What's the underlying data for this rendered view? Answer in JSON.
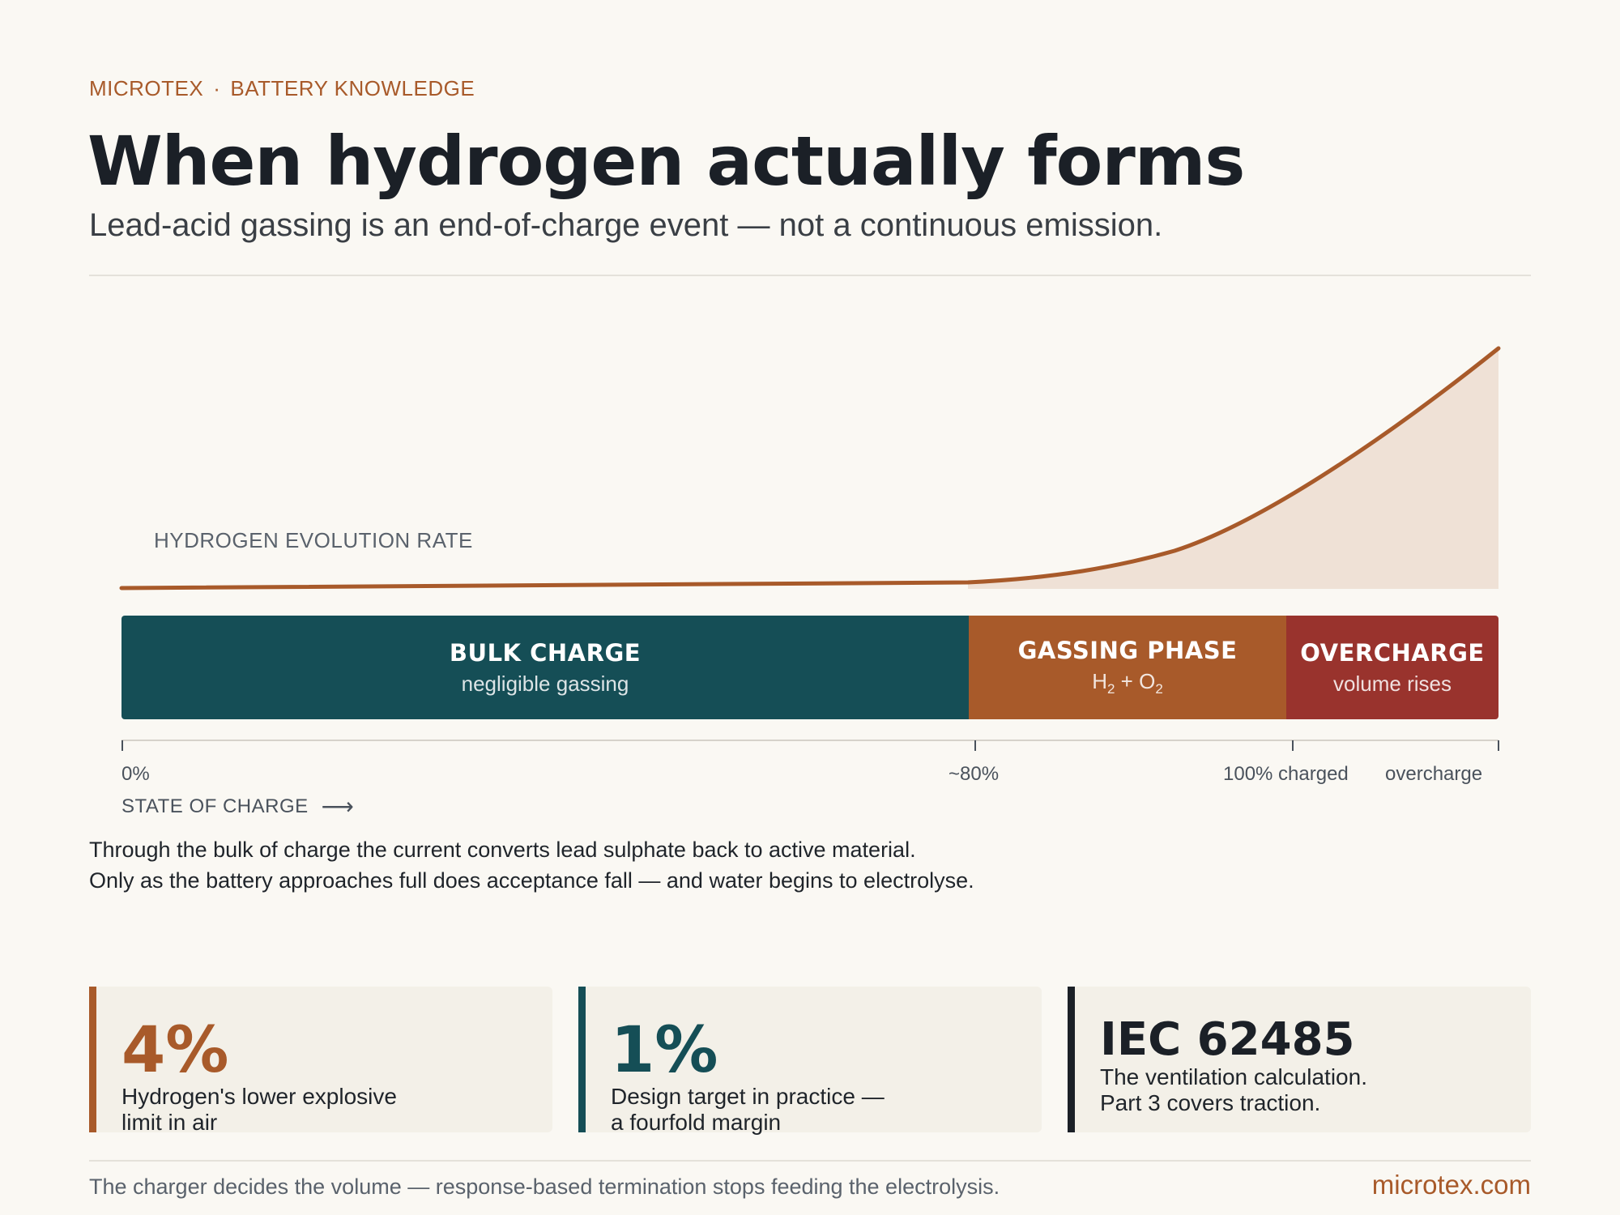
{
  "header": {
    "brand": "MICROTEX",
    "separator": "·",
    "section": "BATTERY KNOWLEDGE",
    "title": "When hydrogen actually forms",
    "subtitle": "Lead-acid gassing is an end-of-charge event — not a continuous emission."
  },
  "chart": {
    "label": "HYDROGEN EVOLUTION RATE",
    "curve_color": "#a85a2a",
    "fill_color": "#efe1d6"
  },
  "phases": [
    {
      "name": "BULK CHARGE",
      "sub": "negligible gassing",
      "color": "#154e56"
    },
    {
      "name": "GASSING PHASE",
      "sub_parts": [
        "H",
        "2",
        " + O",
        "2"
      ],
      "color": "#a85a2a"
    },
    {
      "name": "OVERCHARGE",
      "sub": "volume rises",
      "color": "#99332d"
    }
  ],
  "axis": {
    "ticks": [
      "0%",
      "~80%",
      "100% charged",
      "overcharge"
    ],
    "label": "STATE OF CHARGE",
    "arrow": "⟶"
  },
  "body": {
    "line1": "Through the bulk of charge the current converts lead sulphate back to active material.",
    "line2": "Only as the battery approaches full does acceptance fall — and water begins to electrolyse."
  },
  "cards": [
    {
      "value": "4%",
      "line1": "Hydrogen's lower explosive",
      "line2": "limit in air",
      "accent": "#a85a2a"
    },
    {
      "value": "1%",
      "line1": "Design target in practice —",
      "line2": "a fourfold margin",
      "accent": "#154e56"
    },
    {
      "value": "IEC 62485",
      "line1": "The ventilation calculation.",
      "line2": "Part 3 covers traction.",
      "accent": "#1b2027"
    }
  ],
  "footer": {
    "text": "The charger decides the volume — response-based termination stops feeding the electrolysis.",
    "url": "microtex.com"
  }
}
